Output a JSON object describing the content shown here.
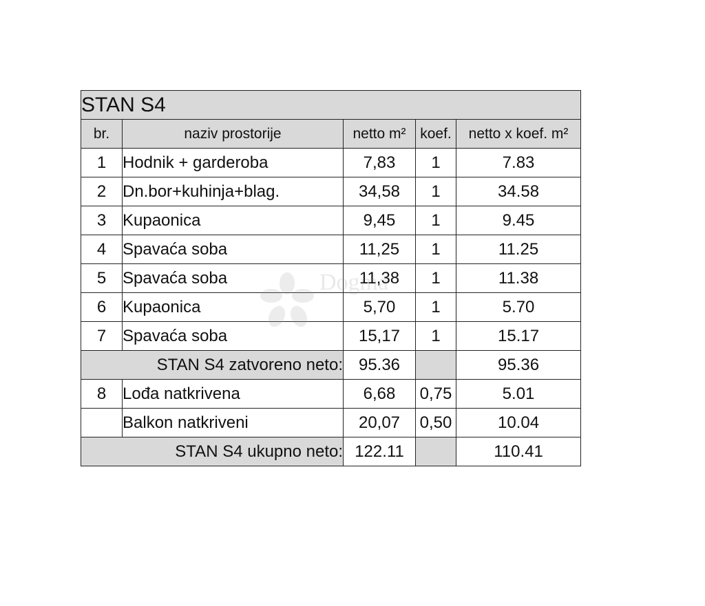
{
  "title": "STAN S4",
  "headers": {
    "br": "br.",
    "naziv": "naziv prostorije",
    "netto": "netto m²",
    "koef": "koef.",
    "netto_koef": "netto x koef. m²"
  },
  "rows": [
    {
      "br": "1",
      "naziv": "Hodnik + garderoba",
      "netto": "7,83",
      "koef": "1",
      "netto_koef": "7.83"
    },
    {
      "br": "2",
      "naziv": "Dn.bor+kuhinja+blag.",
      "netto": "34,58",
      "koef": "1",
      "netto_koef": "34.58"
    },
    {
      "br": "3",
      "naziv": "Kupaonica",
      "netto": "9,45",
      "koef": "1",
      "netto_koef": "9.45"
    },
    {
      "br": "4",
      "naziv": "Spavaća soba",
      "netto": "11,25",
      "koef": "1",
      "netto_koef": "11.25"
    },
    {
      "br": "5",
      "naziv": "Spavaća soba",
      "netto": "11,38",
      "koef": "1",
      "netto_koef": "11.38"
    },
    {
      "br": "6",
      "naziv": "Kupaonica",
      "netto": "5,70",
      "koef": "1",
      "netto_koef": "5.70"
    },
    {
      "br": "7",
      "naziv": "Spavaća soba",
      "netto": "15,17",
      "koef": "1",
      "netto_koef": "15.17"
    }
  ],
  "subtotal": {
    "label": "STAN S4 zatvoreno neto:",
    "netto": "95.36",
    "netto_koef": "95.36"
  },
  "extra_rows": [
    {
      "br": "8",
      "naziv": "Lođa natkrivena",
      "netto": "6,68",
      "koef": "0,75",
      "netto_koef": "5.01"
    },
    {
      "br": "",
      "naziv": "Balkon natkriveni",
      "netto": "20,07",
      "koef": "0,50",
      "netto_koef": "10.04"
    }
  ],
  "total": {
    "label": "STAN S4 ukupno neto:",
    "netto": "122.11",
    "netto_koef": "110.41"
  },
  "watermark": {
    "text": "Dogma"
  }
}
